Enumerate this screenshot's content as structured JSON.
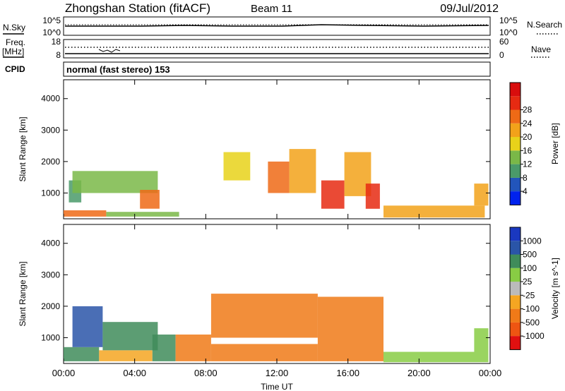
{
  "header": {
    "title": "Zhongshan Station (fitACF)",
    "beam": "Beam 11",
    "date": "09/Jul/2012"
  },
  "aux_panels": {
    "nsky_label": "N.Sky",
    "nsky_ticks": [
      "10^5",
      "10^0"
    ],
    "nsearch_label": "N.Search",
    "nsearch_ticks": [
      "10^5",
      "10^0"
    ],
    "freq_label": "Freq.",
    "freq_unit": "[MHz]",
    "freq_ticks": [
      "18",
      "8"
    ],
    "nave_label": "Nave",
    "nave_ticks": [
      "60",
      "0"
    ],
    "cpid_label": "CPID",
    "cpid_text": "normal (fast stereo) 153"
  },
  "colors": {
    "power_scale": [
      "#0022ee",
      "#2255bb",
      "#4a9a6a",
      "#7ab848",
      "#e8d21a",
      "#f2a21a",
      "#ee6a16",
      "#e62a12",
      "#d80d0d"
    ],
    "velocity_scale": [
      "#e01010",
      "#ee5512",
      "#f07a18",
      "#f5a622",
      "#bbbbbb",
      "#88cc44",
      "#3f8c5a",
      "#2a55a8",
      "#1a38c0"
    ]
  },
  "chart_data": [
    {
      "type": "heatmap",
      "name": "power",
      "xlabel": "Time UT",
      "ylabel": "Slant Range [km]",
      "xlim": [
        0,
        24
      ],
      "ylim": [
        180,
        4600
      ],
      "x_tick_labels": [
        "00:00",
        "04:00",
        "08:00",
        "12:00",
        "16:00",
        "20:00",
        "00:00"
      ],
      "y_ticks": [
        1000,
        2000,
        3000,
        4000
      ],
      "y_tick_labels": [
        "1000",
        "2000",
        "3000",
        "4000"
      ],
      "colorbar": {
        "label": "Power [dB]",
        "ticks": [
          "4",
          "8",
          "12",
          "16",
          "20",
          "24",
          "28"
        ],
        "range": [
          0,
          32
        ]
      },
      "patches": [
        {
          "t0": 0.0,
          "t1": 2.4,
          "r0": 250,
          "r1": 450,
          "color_level": 6
        },
        {
          "t0": 2.4,
          "t1": 6.5,
          "r0": 250,
          "r1": 400,
          "color_level": 3
        },
        {
          "t0": 0.3,
          "t1": 1.0,
          "r0": 700,
          "r1": 1400,
          "color_level": 2
        },
        {
          "t0": 0.5,
          "t1": 5.3,
          "r0": 1000,
          "r1": 1700,
          "color_level": 3
        },
        {
          "t0": 4.3,
          "t1": 5.4,
          "r0": 500,
          "r1": 1100,
          "color_level": 6
        },
        {
          "t0": 9.0,
          "t1": 10.5,
          "r0": 1400,
          "r1": 2300,
          "color_level": 4
        },
        {
          "t0": 11.5,
          "t1": 12.7,
          "r0": 1000,
          "r1": 2000,
          "color_level": 6
        },
        {
          "t0": 12.7,
          "t1": 14.2,
          "r0": 1000,
          "r1": 2400,
          "color_level": 5
        },
        {
          "t0": 14.5,
          "t1": 15.8,
          "r0": 500,
          "r1": 1400,
          "color_level": 7
        },
        {
          "t0": 15.8,
          "t1": 17.3,
          "r0": 900,
          "r1": 2300,
          "color_level": 5
        },
        {
          "t0": 17.0,
          "t1": 17.8,
          "r0": 500,
          "r1": 1300,
          "color_level": 7
        },
        {
          "t0": 18.0,
          "t1": 23.7,
          "r0": 220,
          "r1": 600,
          "color_level": 5
        },
        {
          "t0": 23.1,
          "t1": 23.9,
          "r0": 600,
          "r1": 1300,
          "color_level": 5
        }
      ]
    },
    {
      "type": "heatmap",
      "name": "velocity",
      "xlabel": "Time UT",
      "ylabel": "Slant Range [km]",
      "xlim": [
        0,
        24
      ],
      "ylim": [
        180,
        4600
      ],
      "x_tick_labels": [
        "00:00",
        "04:00",
        "08:00",
        "12:00",
        "16:00",
        "20:00",
        "00:00"
      ],
      "y_ticks": [
        1000,
        2000,
        3000,
        4000
      ],
      "y_tick_labels": [
        "1000",
        "2000",
        "3000",
        "4000"
      ],
      "colorbar": {
        "label": "Velocity [m s^-1]",
        "ticks": [
          "1000",
          "500",
          "100",
          "25",
          "-25",
          "-100",
          "-500",
          "-1000"
        ],
        "range": [
          -1200,
          1200
        ]
      },
      "patches": [
        {
          "t0": 0.0,
          "t1": 2.0,
          "r0": 250,
          "r1": 700,
          "color_level": 6
        },
        {
          "t0": 0.5,
          "t1": 2.2,
          "r0": 700,
          "r1": 2000,
          "color_level": 7
        },
        {
          "t0": 2.0,
          "t1": 5.0,
          "r0": 250,
          "r1": 600,
          "color_level": 3
        },
        {
          "t0": 2.2,
          "t1": 5.3,
          "r0": 600,
          "r1": 1500,
          "color_level": 6
        },
        {
          "t0": 5.0,
          "t1": 6.3,
          "r0": 250,
          "r1": 1100,
          "color_level": 6
        },
        {
          "t0": 6.3,
          "t1": 8.3,
          "r0": 250,
          "r1": 1100,
          "color_level": 2
        },
        {
          "t0": 8.3,
          "t1": 14.3,
          "r0": 1000,
          "r1": 2400,
          "color_level": 2
        },
        {
          "t0": 8.3,
          "t1": 14.3,
          "r0": 250,
          "r1": 800,
          "color_level": 2
        },
        {
          "t0": 14.3,
          "t1": 18.0,
          "r0": 250,
          "r1": 2300,
          "color_level": 2
        },
        {
          "t0": 18.0,
          "t1": 23.9,
          "r0": 220,
          "r1": 550,
          "color_level": 5
        },
        {
          "t0": 23.1,
          "t1": 23.9,
          "r0": 550,
          "r1": 1300,
          "color_level": 5
        }
      ]
    }
  ]
}
